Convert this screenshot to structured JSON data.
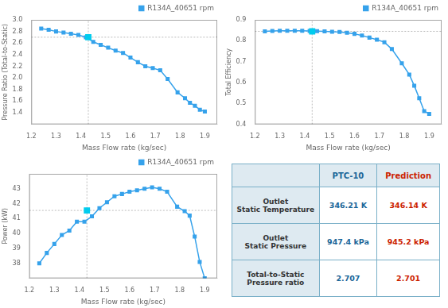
{
  "chart_data": [
    {
      "type": "line",
      "x_label": "Mass Flow rate (kg/sec)",
      "y_label": "Pressure Ratio (Total-to-Static)",
      "x": [
        1.24,
        1.27,
        1.3,
        1.33,
        1.36,
        1.39,
        1.42,
        1.45,
        1.48,
        1.51,
        1.54,
        1.57,
        1.6,
        1.63,
        1.66,
        1.69,
        1.72,
        1.75,
        1.79,
        1.82,
        1.84,
        1.86,
        1.88,
        1.9
      ],
      "series": [
        {
          "name": "R134A_40651 rpm",
          "color": "#36a2eb",
          "marker": "square",
          "values": [
            2.85,
            2.83,
            2.8,
            2.78,
            2.76,
            2.74,
            2.7,
            2.62,
            2.57,
            2.52,
            2.47,
            2.43,
            2.35,
            2.27,
            2.2,
            2.17,
            2.13,
            1.98,
            1.75,
            1.65,
            1.57,
            1.52,
            1.45,
            1.42
          ]
        },
        {
          "type": "scatter",
          "color": "#00ccee",
          "marker": "square",
          "x": [
            1.43
          ],
          "values": [
            2.701
          ]
        }
      ],
      "xlim": [
        1.2,
        1.95
      ],
      "xticks": [
        1.2,
        1.3,
        1.4,
        1.5,
        1.6,
        1.7,
        1.8,
        1.9
      ],
      "ylim": [
        1.2,
        3.0
      ],
      "yticks": [
        1.4,
        1.6,
        1.8,
        {
          "value": 2.0,
          "label": "2.0"
        },
        2.2,
        2.4,
        2.6,
        2.8,
        {
          "value": 3.0,
          "label": "3.0"
        }
      ],
      "grid": false,
      "legend": "upper right"
    },
    {
      "type": "line",
      "x_label": "Mass Flow rate (kg/sec)",
      "y_label": "Total Efficiency",
      "x": [
        1.24,
        1.27,
        1.3,
        1.33,
        1.36,
        1.39,
        1.42,
        1.45,
        1.48,
        1.51,
        1.54,
        1.57,
        1.6,
        1.63,
        1.66,
        1.69,
        1.72,
        1.75,
        1.79,
        1.82,
        1.84,
        1.86,
        1.88,
        1.9
      ],
      "series": [
        {
          "name": "R134A_40651 rpm",
          "color": "#36a2eb",
          "marker": "square",
          "values": [
            0.845,
            0.847,
            0.848,
            0.848,
            0.848,
            0.848,
            0.847,
            0.846,
            0.845,
            0.843,
            0.842,
            0.838,
            0.833,
            0.825,
            0.815,
            0.805,
            0.793,
            0.76,
            0.692,
            0.638,
            0.585,
            0.525,
            0.463,
            0.45
          ]
        },
        {
          "type": "scatter",
          "color": "#00ccee",
          "marker": "square",
          "x": [
            1.43
          ],
          "values": [
            0.845
          ]
        }
      ],
      "xlim": [
        1.2,
        1.95
      ],
      "xticks": [
        1.2,
        1.3,
        1.4,
        1.5,
        1.6,
        1.7,
        1.8,
        1.9
      ],
      "ylim": [
        0.4,
        0.9
      ],
      "yticks": [
        0.4,
        0.5,
        0.6,
        0.7,
        0.8,
        0.9
      ],
      "grid": false,
      "legend": "upper right"
    },
    {
      "type": "line",
      "x_label": "Mass Flow rate (kg/sec)",
      "y_label": "Power (kW)",
      "x": [
        1.24,
        1.27,
        1.3,
        1.33,
        1.36,
        1.39,
        1.42,
        1.45,
        1.48,
        1.51,
        1.54,
        1.57,
        1.6,
        1.63,
        1.66,
        1.69,
        1.72,
        1.75,
        1.79,
        1.82,
        1.84,
        1.86,
        1.88,
        1.9
      ],
      "series": [
        {
          "name": "R134A_40651 rpm",
          "color": "#36a2eb",
          "marker": "square",
          "values": [
            38.0,
            38.7,
            39.3,
            39.9,
            40.2,
            40.8,
            40.8,
            41.15,
            41.7,
            42.1,
            42.5,
            42.65,
            42.8,
            42.9,
            43.0,
            43.1,
            43.0,
            42.8,
            41.8,
            41.5,
            41.2,
            39.8,
            38.1,
            37.0
          ]
        },
        {
          "type": "scatter",
          "color": "#00ccee",
          "marker": "square",
          "x": [
            1.43
          ],
          "values": [
            41.55
          ]
        }
      ],
      "xlim": [
        1.2,
        1.95
      ],
      "xticks": [
        1.2,
        1.3,
        1.4,
        1.5,
        1.6,
        1.7,
        1.8,
        1.9
      ],
      "ylim": [
        37.0,
        44.0
      ],
      "yticks": [
        38,
        39,
        40,
        41,
        42,
        43
      ],
      "grid": false,
      "legend": "upper right"
    },
    {
      "type": "table",
      "categories": [
        "Outlet\nStatic Temperature",
        "Outlet\nStatic Pressure",
        "Total-to-Static\nPressure ratio"
      ],
      "series": [
        {
          "name": "PTC-10",
          "color": "#1a6699",
          "values": [
            346.21,
            947.4,
            2.707
          ],
          "value_labels": [
            "346.21 K",
            "947.4 kPa",
            "2.707"
          ]
        },
        {
          "name": "Prediction",
          "color": "#cc2200",
          "values": [
            346.14,
            945.2,
            2.701
          ],
          "value_labels": [
            "346.14 K",
            "945.2 kPa",
            "2.701"
          ]
        }
      ]
    }
  ]
}
